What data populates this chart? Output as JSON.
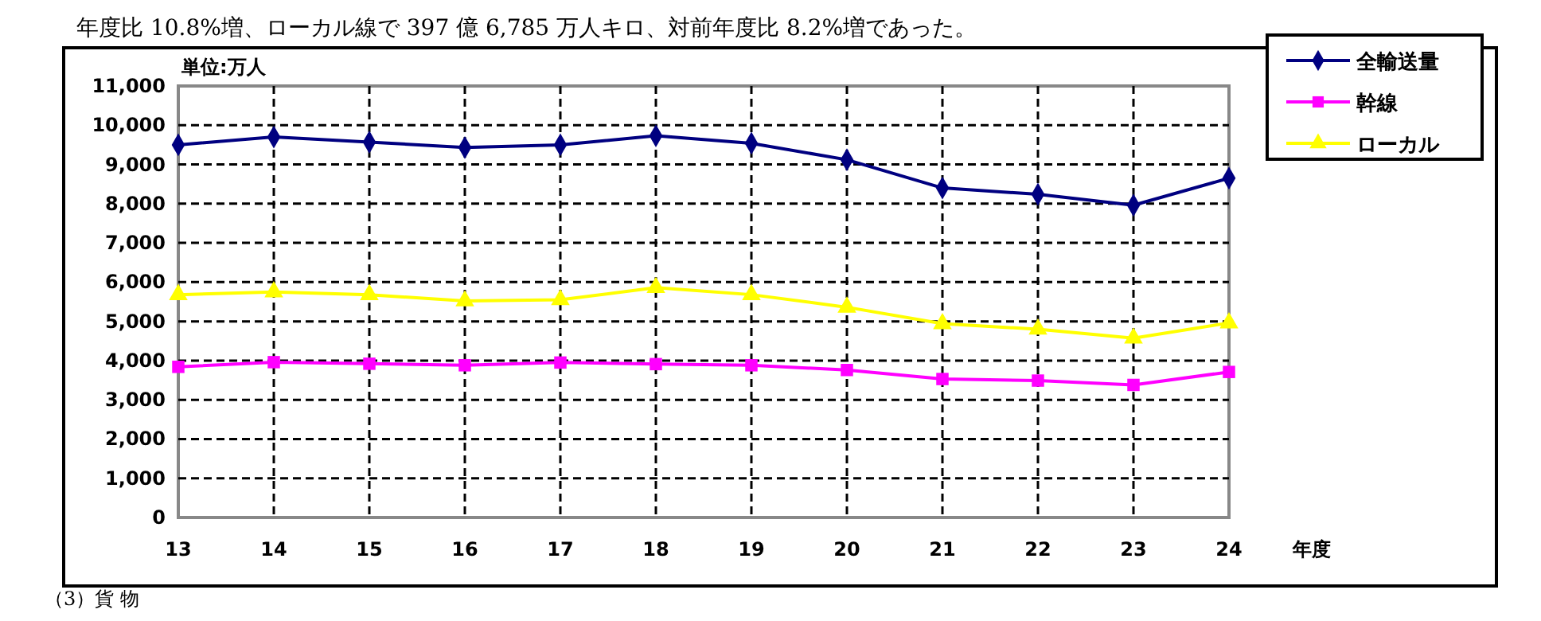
{
  "chart_data": {
    "type": "line",
    "ylabel": "単位:万人",
    "xlabel": "年度",
    "categories": [
      "13",
      "14",
      "15",
      "16",
      "17",
      "18",
      "19",
      "20",
      "21",
      "22",
      "23",
      "24"
    ],
    "series": [
      {
        "name": "全輸送量",
        "color": "#000080",
        "marker": "diamond",
        "values": [
          9500,
          9700,
          9570,
          9430,
          9500,
          9730,
          9540,
          9120,
          8400,
          8240,
          7960,
          8650
        ]
      },
      {
        "name": "幹線",
        "color": "#ff00ff",
        "marker": "square",
        "values": [
          3840,
          3960,
          3920,
          3880,
          3950,
          3910,
          3880,
          3760,
          3530,
          3490,
          3380,
          3710
        ]
      },
      {
        "name": "ローカル",
        "color": "#ffff00",
        "marker": "triangle",
        "values": [
          5680,
          5750,
          5680,
          5520,
          5550,
          5860,
          5680,
          5360,
          4940,
          4800,
          4570,
          4960
        ]
      }
    ],
    "ylim": [
      0,
      11000
    ],
    "yticks": [
      {
        "value": 0,
        "label": "0"
      },
      {
        "value": 1000,
        "label": "1,000"
      },
      {
        "value": 2000,
        "label": "2,000"
      },
      {
        "value": 3000,
        "label": "3,000"
      },
      {
        "value": 4000,
        "label": "4,000"
      },
      {
        "value": 5000,
        "label": "5,000"
      },
      {
        "value": 6000,
        "label": "6,000"
      },
      {
        "value": 7000,
        "label": "7,000"
      },
      {
        "value": 8000,
        "label": "8,000"
      },
      {
        "value": 9000,
        "label": "9,000"
      },
      {
        "value": 10000,
        "label": "10,000"
      },
      {
        "value": 11000,
        "label": "11,000"
      }
    ],
    "grid": true,
    "line_style": "solid",
    "legend": "top right",
    "annotations": [
      "年度比 10.8%増、ローカル線で 397 億 6,785 万人キロ、対前年度比 8.2%増であった。",
      "（3）貨 物"
    ]
  }
}
